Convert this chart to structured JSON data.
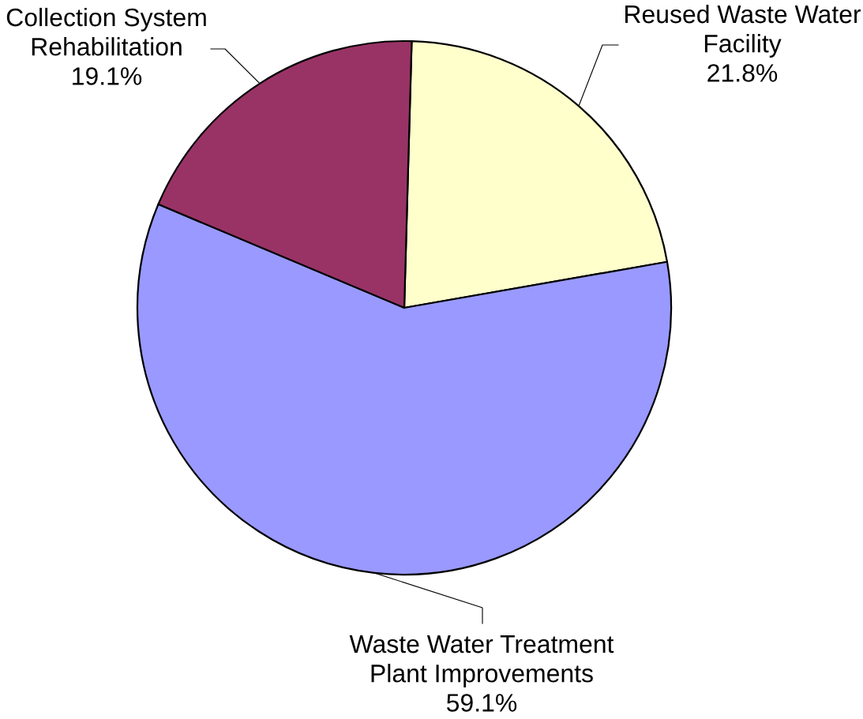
{
  "chart_data": {
    "type": "pie",
    "categories": [
      "Reused Waste Water\nFacility",
      "Waste Water Treatment\nPlant Improvements",
      "Collection System\nRehabilitation"
    ],
    "values": [
      21.8,
      59.1,
      19.1
    ],
    "colors": [
      "#ffffcc",
      "#9999ff",
      "#993366"
    ],
    "value_labels": [
      "21.8%",
      "59.1%",
      "19.1%"
    ]
  }
}
